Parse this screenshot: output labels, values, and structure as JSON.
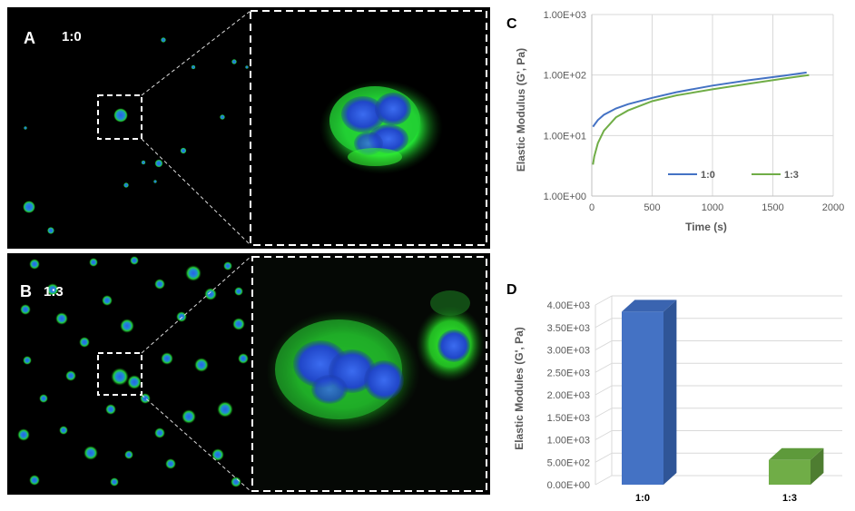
{
  "panels": {
    "A": {
      "letter": "A",
      "ratio": "1:0"
    },
    "B": {
      "letter": "B",
      "ratio": "1:3"
    },
    "C": {
      "letter": "C"
    },
    "D": {
      "letter": "D"
    }
  },
  "colors": {
    "series_1_0": "#4472c4",
    "series_1_3": "#70ad47",
    "bar_1_0_front": "#4472c4",
    "bar_1_0_side": "#2f5597",
    "bar_1_0_top": "#3a64b0",
    "bar_1_3_front": "#70ad47",
    "bar_1_3_side": "#4e7d31",
    "bar_1_3_top": "#5e9a3b",
    "cell_green": "#22dd33",
    "cell_blue": "#2255dd"
  },
  "chart_data": [
    {
      "type": "line",
      "panel": "C",
      "xlabel": "Time (s)",
      "ylabel": "Elastic Modulus (G', Pa)",
      "xlim": [
        0,
        2000
      ],
      "ylim": [
        1,
        1000
      ],
      "yscale": "log",
      "x_ticks": [
        "0",
        "500",
        "1000",
        "1500",
        "2000"
      ],
      "y_ticks": [
        "1.00E+00",
        "1.00E+01",
        "1.00E+02",
        "1.00E+03"
      ],
      "grid": true,
      "legend_position": "bottom-inside",
      "series": [
        {
          "name": "1:0",
          "x": [
            10,
            50,
            100,
            200,
            300,
            500,
            700,
            1000,
            1300,
            1600,
            1780
          ],
          "y": [
            14,
            18,
            22,
            28,
            33,
            42,
            52,
            67,
            82,
            98,
            110
          ]
        },
        {
          "name": "1:3",
          "x": [
            10,
            20,
            50,
            100,
            200,
            300,
            500,
            700,
            1000,
            1300,
            1600,
            1800
          ],
          "y": [
            3.3,
            4.5,
            7.5,
            12,
            20,
            26,
            37,
            46,
            58,
            72,
            88,
            100
          ]
        }
      ]
    },
    {
      "type": "bar",
      "panel": "D",
      "style": "3d",
      "ylabel": "Elastic Modules (G', Pa)",
      "categories": [
        "1:0",
        "1:3"
      ],
      "values": [
        3850,
        550
      ],
      "ylim": [
        0,
        4000
      ],
      "y_ticks": [
        "0.00E+00",
        "5.00E+02",
        "1.00E+03",
        "1.50E+03",
        "2.00E+03",
        "2.50E+03",
        "3.00E+03",
        "3.50E+03",
        "4.00E+03"
      ],
      "grid": true
    }
  ]
}
